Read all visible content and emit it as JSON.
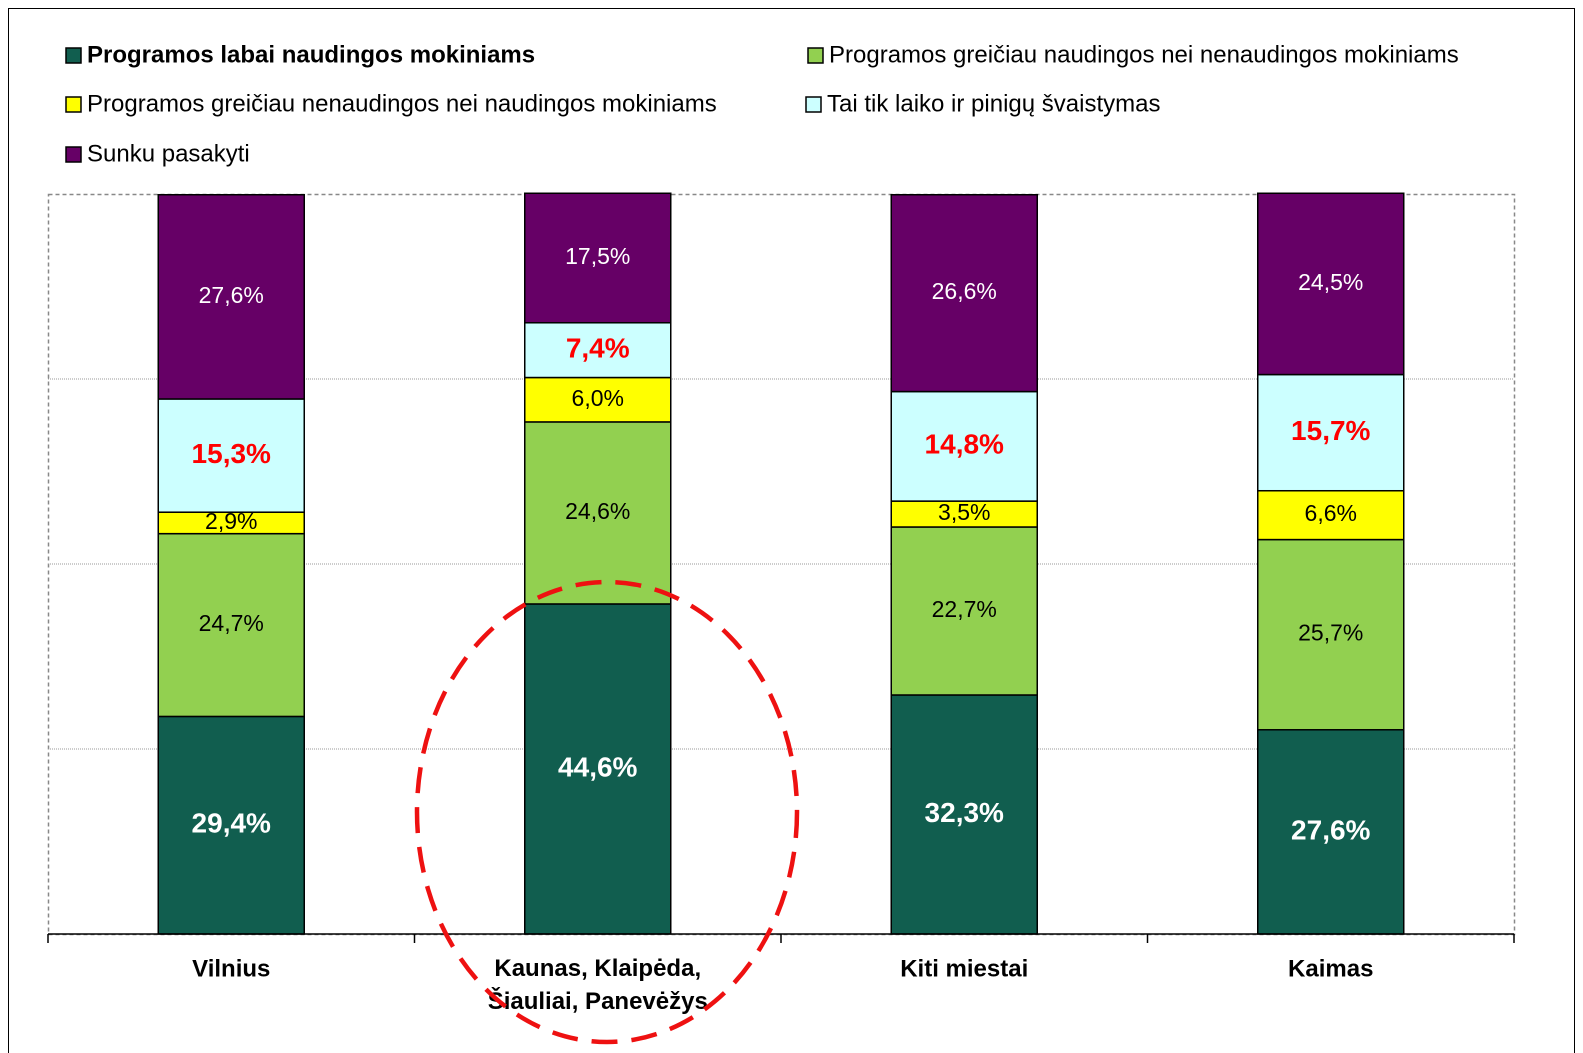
{
  "chart_data": {
    "type": "stacked_bar_100",
    "categories": [
      "Vilnius",
      "Kaunas, Klaipėda,\nŠiauliai, Panevėžys",
      "Kiti miestai",
      "Kaimas"
    ],
    "ylim": [
      0,
      100
    ],
    "yticks": [
      0,
      25,
      50,
      75,
      100
    ],
    "grid": true,
    "series": [
      {
        "name": "Programos labai naudingos mokiniams",
        "color": "#115e4f",
        "label_color": "#ffffff",
        "label_bold": true,
        "values": [
          29.4,
          44.6,
          32.3,
          27.6
        ],
        "value_labels": [
          "29,4%",
          "44,6%",
          "32,3%",
          "27,6%"
        ]
      },
      {
        "name": "Programos greičiau naudingos nei nenaudingos mokiniams",
        "color": "#92d050",
        "label_color": "#000000",
        "label_bold": false,
        "values": [
          24.7,
          24.6,
          22.7,
          25.7
        ],
        "value_labels": [
          "24,7%",
          "24,6%",
          "22,7%",
          "25,7%"
        ]
      },
      {
        "name": "Programos greičiau nenaudingos nei naudingos mokiniams",
        "color": "#ffff00",
        "label_color": "#000000",
        "label_bold": false,
        "values": [
          2.9,
          6.0,
          3.5,
          6.6
        ],
        "value_labels": [
          "2,9%",
          "6,0%",
          "3,5%",
          "6,6%"
        ]
      },
      {
        "name": "Tai tik laiko ir pinigų švaistymas",
        "color": "#ccffff",
        "label_color": "#ff0000",
        "label_bold": true,
        "values": [
          15.3,
          7.4,
          14.8,
          15.7
        ],
        "value_labels": [
          "15,3%",
          "7,4%",
          "14,8%",
          "15,7%"
        ]
      },
      {
        "name": "Sunku pasakyti",
        "color": "#660066",
        "label_color": "#ffffff",
        "label_bold": false,
        "values": [
          27.6,
          17.5,
          26.6,
          24.5
        ],
        "value_labels": [
          "27,6%",
          "17,5%",
          "26,6%",
          "24,5%"
        ]
      }
    ]
  }
}
